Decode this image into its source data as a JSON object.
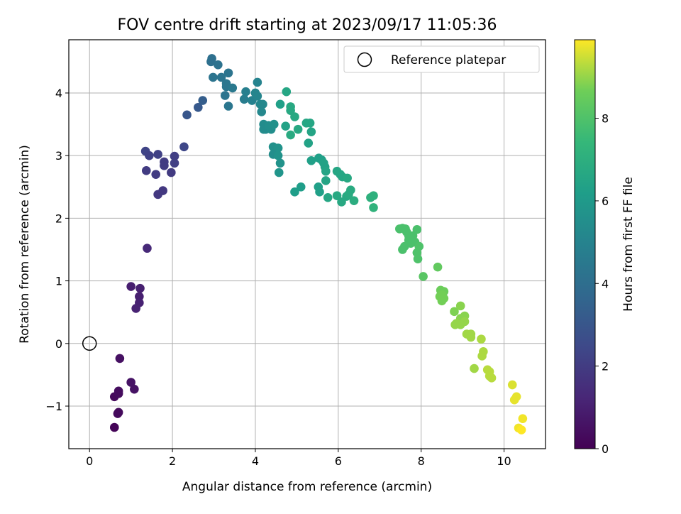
{
  "chart_data": {
    "type": "scatter",
    "title": "FOV centre drift starting at 2023/09/17 11:05:36",
    "xlabel": "Angular distance from reference (arcmin)",
    "ylabel": "Rotation from reference (arcmin)",
    "xlim": [
      -0.5,
      11
    ],
    "ylim": [
      -1.68,
      4.85
    ],
    "xticks": [
      0,
      2,
      4,
      6,
      8,
      10
    ],
    "yticks": [
      -1,
      0,
      1,
      2,
      3,
      4
    ],
    "grid": true,
    "legend": {
      "position": "top-right",
      "entries": [
        "Reference platepar"
      ]
    },
    "reference_point": {
      "x": 0,
      "y": 0
    },
    "colorbar": {
      "label": "Hours from first FF file",
      "colormap": "viridis",
      "range": [
        0,
        9.9
      ],
      "ticks": [
        0,
        2,
        4,
        6,
        8
      ]
    },
    "points": [
      {
        "x": 0.6,
        "y": -1.34,
        "h": 0.1
      },
      {
        "x": 0.6,
        "y": -0.85,
        "h": 0.3
      },
      {
        "x": 0.7,
        "y": -0.76,
        "h": 0.4
      },
      {
        "x": 0.7,
        "y": -0.8,
        "h": 0.35
      },
      {
        "x": 0.7,
        "y": -1.1,
        "h": 0.3
      },
      {
        "x": 0.68,
        "y": -1.12,
        "h": 0.3
      },
      {
        "x": 0.73,
        "y": -0.24,
        "h": 0.5
      },
      {
        "x": 1.0,
        "y": -0.62,
        "h": 0.6
      },
      {
        "x": 1.08,
        "y": -0.73,
        "h": 0.55
      },
      {
        "x": 1.0,
        "y": 0.91,
        "h": 0.95
      },
      {
        "x": 1.22,
        "y": 0.88,
        "h": 1.0
      },
      {
        "x": 1.2,
        "y": 0.75,
        "h": 1.0
      },
      {
        "x": 1.2,
        "y": 0.65,
        "h": 1.05
      },
      {
        "x": 1.12,
        "y": 0.56,
        "h": 1.1
      },
      {
        "x": 1.39,
        "y": 1.52,
        "h": 1.3
      },
      {
        "x": 1.35,
        "y": 3.07,
        "h": 2.3
      },
      {
        "x": 1.44,
        "y": 3.0,
        "h": 2.2
      },
      {
        "x": 1.37,
        "y": 2.76,
        "h": 2.0
      },
      {
        "x": 1.65,
        "y": 3.02,
        "h": 2.2
      },
      {
        "x": 1.6,
        "y": 2.7,
        "h": 2.0
      },
      {
        "x": 1.8,
        "y": 2.9,
        "h": 2.0
      },
      {
        "x": 1.8,
        "y": 2.84,
        "h": 2.0
      },
      {
        "x": 1.65,
        "y": 2.38,
        "h": 1.85
      },
      {
        "x": 1.77,
        "y": 2.44,
        "h": 1.85
      },
      {
        "x": 1.97,
        "y": 2.73,
        "h": 1.95
      },
      {
        "x": 2.05,
        "y": 2.99,
        "h": 2.1
      },
      {
        "x": 2.05,
        "y": 2.88,
        "h": 2.1
      },
      {
        "x": 2.28,
        "y": 3.14,
        "h": 2.4
      },
      {
        "x": 2.35,
        "y": 3.65,
        "h": 3.0
      },
      {
        "x": 2.62,
        "y": 3.77,
        "h": 3.1
      },
      {
        "x": 2.73,
        "y": 3.88,
        "h": 3.3
      },
      {
        "x": 2.95,
        "y": 4.55,
        "h": 4.1
      },
      {
        "x": 2.93,
        "y": 4.5,
        "h": 4.1
      },
      {
        "x": 3.1,
        "y": 4.45,
        "h": 4.2
      },
      {
        "x": 2.98,
        "y": 4.25,
        "h": 4.3
      },
      {
        "x": 3.18,
        "y": 4.25,
        "h": 4.3
      },
      {
        "x": 3.3,
        "y": 4.15,
        "h": 4.4
      },
      {
        "x": 3.35,
        "y": 4.32,
        "h": 4.3
      },
      {
        "x": 3.3,
        "y": 4.1,
        "h": 4.4
      },
      {
        "x": 3.45,
        "y": 4.08,
        "h": 4.5
      },
      {
        "x": 3.27,
        "y": 3.96,
        "h": 4.3
      },
      {
        "x": 3.35,
        "y": 3.79,
        "h": 4.4
      },
      {
        "x": 3.73,
        "y": 3.9,
        "h": 4.7
      },
      {
        "x": 3.77,
        "y": 4.02,
        "h": 4.8
      },
      {
        "x": 3.92,
        "y": 3.88,
        "h": 4.9
      },
      {
        "x": 4.05,
        "y": 4.17,
        "h": 5.0
      },
      {
        "x": 4.0,
        "y": 4.0,
        "h": 5.1
      },
      {
        "x": 4.05,
        "y": 3.95,
        "h": 5.1
      },
      {
        "x": 4.12,
        "y": 3.82,
        "h": 5.2
      },
      {
        "x": 4.18,
        "y": 3.82,
        "h": 5.2
      },
      {
        "x": 4.15,
        "y": 3.7,
        "h": 5.2
      },
      {
        "x": 4.2,
        "y": 3.5,
        "h": 5.4
      },
      {
        "x": 4.25,
        "y": 3.42,
        "h": 5.3
      },
      {
        "x": 4.2,
        "y": 3.42,
        "h": 5.4
      },
      {
        "x": 4.38,
        "y": 3.42,
        "h": 5.5
      },
      {
        "x": 4.32,
        "y": 3.48,
        "h": 5.5
      },
      {
        "x": 4.45,
        "y": 3.5,
        "h": 5.6
      },
      {
        "x": 4.43,
        "y": 3.14,
        "h": 5.6
      },
      {
        "x": 4.55,
        "y": 3.12,
        "h": 5.7
      },
      {
        "x": 4.43,
        "y": 3.02,
        "h": 5.5
      },
      {
        "x": 4.55,
        "y": 3.0,
        "h": 5.7
      },
      {
        "x": 4.6,
        "y": 2.88,
        "h": 5.7
      },
      {
        "x": 4.57,
        "y": 2.73,
        "h": 5.8
      },
      {
        "x": 4.6,
        "y": 3.82,
        "h": 6.3
      },
      {
        "x": 4.75,
        "y": 4.02,
        "h": 6.6
      },
      {
        "x": 4.73,
        "y": 3.47,
        "h": 6.4
      },
      {
        "x": 4.85,
        "y": 3.78,
        "h": 6.7
      },
      {
        "x": 4.85,
        "y": 3.72,
        "h": 6.7
      },
      {
        "x": 4.95,
        "y": 3.62,
        "h": 6.7
      },
      {
        "x": 4.85,
        "y": 3.33,
        "h": 6.8
      },
      {
        "x": 5.03,
        "y": 3.42,
        "h": 6.7
      },
      {
        "x": 5.23,
        "y": 3.52,
        "h": 6.6
      },
      {
        "x": 5.32,
        "y": 3.52,
        "h": 6.6
      },
      {
        "x": 5.35,
        "y": 3.38,
        "h": 6.5
      },
      {
        "x": 5.28,
        "y": 3.2,
        "h": 6.4
      },
      {
        "x": 5.35,
        "y": 2.92,
        "h": 6.3
      },
      {
        "x": 5.53,
        "y": 2.96,
        "h": 6.3
      },
      {
        "x": 5.6,
        "y": 2.93,
        "h": 6.3
      },
      {
        "x": 5.65,
        "y": 2.88,
        "h": 6.4
      },
      {
        "x": 5.68,
        "y": 2.82,
        "h": 6.4
      },
      {
        "x": 4.95,
        "y": 2.42,
        "h": 6.2
      },
      {
        "x": 5.1,
        "y": 2.5,
        "h": 6.2
      },
      {
        "x": 5.52,
        "y": 2.5,
        "h": 6.3
      },
      {
        "x": 5.55,
        "y": 2.42,
        "h": 6.3
      },
      {
        "x": 5.7,
        "y": 2.6,
        "h": 6.5
      },
      {
        "x": 5.7,
        "y": 2.75,
        "h": 6.5
      },
      {
        "x": 5.97,
        "y": 2.75,
        "h": 6.6
      },
      {
        "x": 6.05,
        "y": 2.7,
        "h": 6.6
      },
      {
        "x": 6.1,
        "y": 2.66,
        "h": 6.6
      },
      {
        "x": 6.22,
        "y": 2.64,
        "h": 6.7
      },
      {
        "x": 5.75,
        "y": 2.33,
        "h": 6.6
      },
      {
        "x": 5.97,
        "y": 2.36,
        "h": 6.7
      },
      {
        "x": 6.08,
        "y": 2.26,
        "h": 6.7
      },
      {
        "x": 6.2,
        "y": 2.35,
        "h": 6.7
      },
      {
        "x": 6.3,
        "y": 2.45,
        "h": 6.8
      },
      {
        "x": 6.25,
        "y": 2.38,
        "h": 6.8
      },
      {
        "x": 6.38,
        "y": 2.28,
        "h": 6.9
      },
      {
        "x": 6.78,
        "y": 2.33,
        "h": 7.1
      },
      {
        "x": 6.85,
        "y": 2.36,
        "h": 7.1
      },
      {
        "x": 6.85,
        "y": 2.17,
        "h": 7.2
      },
      {
        "x": 7.48,
        "y": 1.83,
        "h": 7.9
      },
      {
        "x": 7.55,
        "y": 1.84,
        "h": 7.9
      },
      {
        "x": 7.62,
        "y": 1.83,
        "h": 7.9
      },
      {
        "x": 7.65,
        "y": 1.78,
        "h": 7.9
      },
      {
        "x": 7.7,
        "y": 1.72,
        "h": 7.9
      },
      {
        "x": 7.8,
        "y": 1.72,
        "h": 7.9
      },
      {
        "x": 7.9,
        "y": 1.82,
        "h": 7.9
      },
      {
        "x": 7.7,
        "y": 1.65,
        "h": 7.9
      },
      {
        "x": 7.75,
        "y": 1.6,
        "h": 7.9
      },
      {
        "x": 7.85,
        "y": 1.62,
        "h": 7.9
      },
      {
        "x": 7.6,
        "y": 1.55,
        "h": 7.9
      },
      {
        "x": 7.55,
        "y": 1.5,
        "h": 7.9
      },
      {
        "x": 7.95,
        "y": 1.55,
        "h": 8.0
      },
      {
        "x": 7.9,
        "y": 1.45,
        "h": 8.0
      },
      {
        "x": 7.92,
        "y": 1.35,
        "h": 8.0
      },
      {
        "x": 8.05,
        "y": 1.07,
        "h": 8.2
      },
      {
        "x": 8.4,
        "y": 1.22,
        "h": 8.4
      },
      {
        "x": 8.47,
        "y": 0.85,
        "h": 8.6
      },
      {
        "x": 8.55,
        "y": 0.83,
        "h": 8.6
      },
      {
        "x": 8.5,
        "y": 0.78,
        "h": 8.7
      },
      {
        "x": 8.45,
        "y": 0.75,
        "h": 8.7
      },
      {
        "x": 8.5,
        "y": 0.68,
        "h": 8.7
      },
      {
        "x": 8.55,
        "y": 0.72,
        "h": 8.7
      },
      {
        "x": 8.8,
        "y": 0.51,
        "h": 8.8
      },
      {
        "x": 8.95,
        "y": 0.6,
        "h": 8.9
      },
      {
        "x": 9.05,
        "y": 0.44,
        "h": 8.9
      },
      {
        "x": 8.95,
        "y": 0.4,
        "h": 8.9
      },
      {
        "x": 9.05,
        "y": 0.35,
        "h": 9.0
      },
      {
        "x": 8.85,
        "y": 0.32,
        "h": 9.0
      },
      {
        "x": 8.95,
        "y": 0.3,
        "h": 9.0
      },
      {
        "x": 8.82,
        "y": 0.3,
        "h": 9.0
      },
      {
        "x": 9.1,
        "y": 0.15,
        "h": 9.1
      },
      {
        "x": 9.2,
        "y": 0.1,
        "h": 9.1
      },
      {
        "x": 9.2,
        "y": 0.15,
        "h": 9.1
      },
      {
        "x": 9.45,
        "y": 0.07,
        "h": 9.2
      },
      {
        "x": 9.28,
        "y": -0.4,
        "h": 9.1
      },
      {
        "x": 9.5,
        "y": -0.13,
        "h": 9.2
      },
      {
        "x": 9.47,
        "y": -0.2,
        "h": 9.2
      },
      {
        "x": 9.6,
        "y": -0.42,
        "h": 9.3
      },
      {
        "x": 9.65,
        "y": -0.45,
        "h": 9.3
      },
      {
        "x": 9.65,
        "y": -0.52,
        "h": 9.3
      },
      {
        "x": 9.7,
        "y": -0.55,
        "h": 9.3
      },
      {
        "x": 10.2,
        "y": -0.66,
        "h": 9.6
      },
      {
        "x": 10.25,
        "y": -0.9,
        "h": 9.7
      },
      {
        "x": 10.3,
        "y": -0.85,
        "h": 9.7
      },
      {
        "x": 10.45,
        "y": -1.2,
        "h": 9.8
      },
      {
        "x": 10.35,
        "y": -1.35,
        "h": 9.8
      },
      {
        "x": 10.42,
        "y": -1.38,
        "h": 9.9
      }
    ]
  }
}
